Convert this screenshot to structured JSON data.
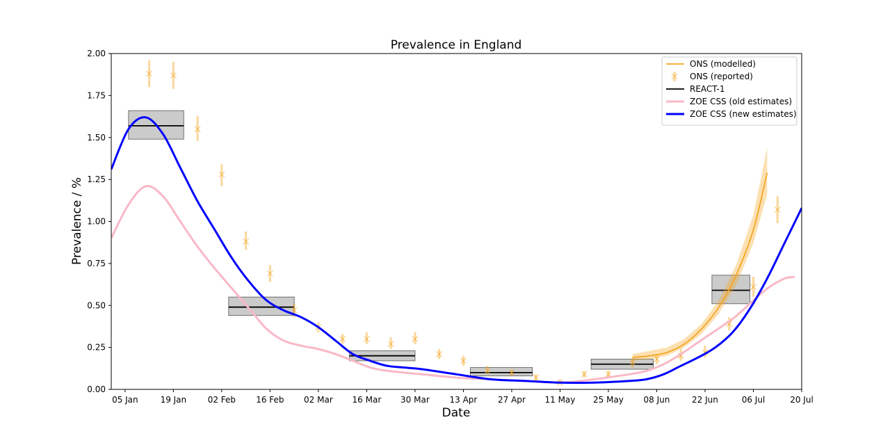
{
  "chart_data": {
    "type": "line",
    "title": "Prevalence in England",
    "xlabel": "Date",
    "ylabel": "Prevalence / %",
    "x_ticks": [
      {
        "date": "2021-01-05",
        "label": "05 Jan"
      },
      {
        "date": "2021-01-19",
        "label": "19 Jan"
      },
      {
        "date": "2021-02-02",
        "label": "02 Feb"
      },
      {
        "date": "2021-02-16",
        "label": "16 Feb"
      },
      {
        "date": "2021-03-02",
        "label": "02 Mar"
      },
      {
        "date": "2021-03-16",
        "label": "16 Mar"
      },
      {
        "date": "2021-03-30",
        "label": "30 Mar"
      },
      {
        "date": "2021-04-13",
        "label": "13 Apr"
      },
      {
        "date": "2021-04-27",
        "label": "27 Apr"
      },
      {
        "date": "2021-05-11",
        "label": "11 May"
      },
      {
        "date": "2021-05-25",
        "label": "25 May"
      },
      {
        "date": "2021-06-08",
        "label": "08 Jun"
      },
      {
        "date": "2021-06-22",
        "label": "22 Jun"
      },
      {
        "date": "2021-07-06",
        "label": "06 Jul"
      },
      {
        "date": "2021-07-20",
        "label": "20 Jul"
      }
    ],
    "y_ticks": [
      "0.00",
      "0.25",
      "0.50",
      "0.75",
      "1.00",
      "1.25",
      "1.50",
      "1.75",
      "2.00"
    ],
    "xlim": [
      "2021-01-01",
      "2021-07-20"
    ],
    "ylim": [
      0,
      2.0
    ],
    "legend_position": "top-right",
    "grid": false,
    "series": [
      {
        "name": "ONS (modelled)",
        "kind": "line_band",
        "color": "#f5a623",
        "band_color": "#f5a623",
        "points": [
          {
            "x": "2021-06-01",
            "y": 0.19,
            "lo": 0.17,
            "hi": 0.21
          },
          {
            "x": "2021-06-06",
            "y": 0.2,
            "lo": 0.18,
            "hi": 0.23
          },
          {
            "x": "2021-06-11",
            "y": 0.22,
            "lo": 0.2,
            "hi": 0.25
          },
          {
            "x": "2021-06-16",
            "y": 0.27,
            "lo": 0.25,
            "hi": 0.3
          },
          {
            "x": "2021-06-21",
            "y": 0.36,
            "lo": 0.33,
            "hi": 0.39
          },
          {
            "x": "2021-06-26",
            "y": 0.49,
            "lo": 0.45,
            "hi": 0.53
          },
          {
            "x": "2021-07-01",
            "y": 0.68,
            "lo": 0.62,
            "hi": 0.74
          },
          {
            "x": "2021-07-06",
            "y": 0.95,
            "lo": 0.87,
            "hi": 1.04
          },
          {
            "x": "2021-07-10",
            "y": 1.29,
            "lo": 1.16,
            "hi": 1.44
          }
        ]
      },
      {
        "name": "ONS (reported)",
        "kind": "errorbar",
        "color": "#f5a623",
        "points": [
          {
            "x": "2021-01-12",
            "y": 1.88,
            "lo": 1.8,
            "hi": 1.96
          },
          {
            "x": "2021-01-19",
            "y": 1.87,
            "lo": 1.79,
            "hi": 1.95
          },
          {
            "x": "2021-01-26",
            "y": 1.55,
            "lo": 1.48,
            "hi": 1.63
          },
          {
            "x": "2021-02-02",
            "y": 1.28,
            "lo": 1.21,
            "hi": 1.34
          },
          {
            "x": "2021-02-09",
            "y": 0.88,
            "lo": 0.83,
            "hi": 0.94
          },
          {
            "x": "2021-02-16",
            "y": 0.69,
            "lo": 0.64,
            "hi": 0.74
          },
          {
            "x": "2021-02-23",
            "y": 0.47,
            "lo": 0.43,
            "hi": 0.51
          },
          {
            "x": "2021-03-02",
            "y": 0.37,
            "lo": 0.34,
            "hi": 0.4
          },
          {
            "x": "2021-03-09",
            "y": 0.3,
            "lo": 0.27,
            "hi": 0.33
          },
          {
            "x": "2021-03-16",
            "y": 0.3,
            "lo": 0.27,
            "hi": 0.34
          },
          {
            "x": "2021-03-23",
            "y": 0.27,
            "lo": 0.24,
            "hi": 0.31
          },
          {
            "x": "2021-03-30",
            "y": 0.3,
            "lo": 0.27,
            "hi": 0.34
          },
          {
            "x": "2021-04-06",
            "y": 0.21,
            "lo": 0.18,
            "hi": 0.24
          },
          {
            "x": "2021-04-13",
            "y": 0.17,
            "lo": 0.14,
            "hi": 0.2
          },
          {
            "x": "2021-04-20",
            "y": 0.11,
            "lo": 0.09,
            "hi": 0.14
          },
          {
            "x": "2021-04-27",
            "y": 0.1,
            "lo": 0.08,
            "hi": 0.12
          },
          {
            "x": "2021-05-04",
            "y": 0.07,
            "lo": 0.05,
            "hi": 0.09
          },
          {
            "x": "2021-05-11",
            "y": 0.04,
            "lo": 0.03,
            "hi": 0.06
          },
          {
            "x": "2021-05-18",
            "y": 0.09,
            "lo": 0.07,
            "hi": 0.11
          },
          {
            "x": "2021-05-25",
            "y": 0.09,
            "lo": 0.07,
            "hi": 0.11
          },
          {
            "x": "2021-06-01",
            "y": 0.16,
            "lo": 0.13,
            "hi": 0.19
          },
          {
            "x": "2021-06-08",
            "y": 0.18,
            "lo": 0.15,
            "hi": 0.21
          },
          {
            "x": "2021-06-15",
            "y": 0.2,
            "lo": 0.17,
            "hi": 0.24
          },
          {
            "x": "2021-06-22",
            "y": 0.22,
            "lo": 0.19,
            "hi": 0.26
          },
          {
            "x": "2021-06-29",
            "y": 0.39,
            "lo": 0.35,
            "hi": 0.43
          },
          {
            "x": "2021-07-06",
            "y": 0.61,
            "lo": 0.55,
            "hi": 0.67
          },
          {
            "x": "2021-07-13",
            "y": 1.07,
            "lo": 0.99,
            "hi": 1.15
          }
        ]
      },
      {
        "name": "REACT-1",
        "kind": "interval_box",
        "color": "#000000",
        "box_color": "#a0a0a0",
        "rounds": [
          {
            "start": "2021-01-06",
            "end": "2021-01-22",
            "y": 1.57,
            "lo": 1.49,
            "hi": 1.66
          },
          {
            "start": "2021-02-04",
            "end": "2021-02-23",
            "y": 0.49,
            "lo": 0.44,
            "hi": 0.55
          },
          {
            "start": "2021-03-11",
            "end": "2021-03-30",
            "y": 0.2,
            "lo": 0.17,
            "hi": 0.23
          },
          {
            "start": "2021-04-15",
            "end": "2021-05-03",
            "y": 0.1,
            "lo": 0.08,
            "hi": 0.13
          },
          {
            "start": "2021-05-20",
            "end": "2021-06-07",
            "y": 0.15,
            "lo": 0.12,
            "hi": 0.18
          },
          {
            "start": "2021-06-24",
            "end": "2021-07-05",
            "y": 0.59,
            "lo": 0.51,
            "hi": 0.68
          }
        ]
      },
      {
        "name": "ZOE CSS (old estimates)",
        "kind": "line",
        "color": "#f9b8c6",
        "points": [
          {
            "x": "2021-01-01",
            "y": 0.9
          },
          {
            "x": "2021-01-06",
            "y": 1.1
          },
          {
            "x": "2021-01-11",
            "y": 1.21
          },
          {
            "x": "2021-01-16",
            "y": 1.15
          },
          {
            "x": "2021-01-21",
            "y": 1.0
          },
          {
            "x": "2021-01-26",
            "y": 0.85
          },
          {
            "x": "2021-01-31",
            "y": 0.72
          },
          {
            "x": "2021-02-05",
            "y": 0.6
          },
          {
            "x": "2021-02-10",
            "y": 0.48
          },
          {
            "x": "2021-02-15",
            "y": 0.36
          },
          {
            "x": "2021-02-20",
            "y": 0.29
          },
          {
            "x": "2021-02-25",
            "y": 0.26
          },
          {
            "x": "2021-03-02",
            "y": 0.24
          },
          {
            "x": "2021-03-07",
            "y": 0.21
          },
          {
            "x": "2021-03-12",
            "y": 0.17
          },
          {
            "x": "2021-03-17",
            "y": 0.13
          },
          {
            "x": "2021-03-22",
            "y": 0.11
          },
          {
            "x": "2021-03-27",
            "y": 0.1
          },
          {
            "x": "2021-04-01",
            "y": 0.09
          },
          {
            "x": "2021-04-11",
            "y": 0.07
          },
          {
            "x": "2021-04-21",
            "y": 0.06
          },
          {
            "x": "2021-05-01",
            "y": 0.05
          },
          {
            "x": "2021-05-11",
            "y": 0.04
          },
          {
            "x": "2021-05-21",
            "y": 0.06
          },
          {
            "x": "2021-05-31",
            "y": 0.09
          },
          {
            "x": "2021-06-05",
            "y": 0.11
          },
          {
            "x": "2021-06-10",
            "y": 0.15
          },
          {
            "x": "2021-06-15",
            "y": 0.21
          },
          {
            "x": "2021-06-20",
            "y": 0.28
          },
          {
            "x": "2021-06-25",
            "y": 0.35
          },
          {
            "x": "2021-06-30",
            "y": 0.42
          },
          {
            "x": "2021-07-05",
            "y": 0.51
          },
          {
            "x": "2021-07-10",
            "y": 0.6
          },
          {
            "x": "2021-07-15",
            "y": 0.66
          },
          {
            "x": "2021-07-18",
            "y": 0.67
          }
        ]
      },
      {
        "name": "ZOE CSS (new estimates)",
        "kind": "line",
        "color": "#0000ff",
        "points": [
          {
            "x": "2021-01-01",
            "y": 1.31
          },
          {
            "x": "2021-01-06",
            "y": 1.55
          },
          {
            "x": "2021-01-11",
            "y": 1.62
          },
          {
            "x": "2021-01-16",
            "y": 1.52
          },
          {
            "x": "2021-01-21",
            "y": 1.32
          },
          {
            "x": "2021-01-26",
            "y": 1.12
          },
          {
            "x": "2021-01-31",
            "y": 0.95
          },
          {
            "x": "2021-02-05",
            "y": 0.78
          },
          {
            "x": "2021-02-10",
            "y": 0.64
          },
          {
            "x": "2021-02-15",
            "y": 0.53
          },
          {
            "x": "2021-02-20",
            "y": 0.47
          },
          {
            "x": "2021-02-25",
            "y": 0.43
          },
          {
            "x": "2021-03-02",
            "y": 0.37
          },
          {
            "x": "2021-03-07",
            "y": 0.29
          },
          {
            "x": "2021-03-12",
            "y": 0.21
          },
          {
            "x": "2021-03-17",
            "y": 0.17
          },
          {
            "x": "2021-03-22",
            "y": 0.14
          },
          {
            "x": "2021-03-27",
            "y": 0.13
          },
          {
            "x": "2021-04-01",
            "y": 0.12
          },
          {
            "x": "2021-04-11",
            "y": 0.09
          },
          {
            "x": "2021-04-21",
            "y": 0.06
          },
          {
            "x": "2021-05-01",
            "y": 0.05
          },
          {
            "x": "2021-05-11",
            "y": 0.04
          },
          {
            "x": "2021-05-21",
            "y": 0.04
          },
          {
            "x": "2021-05-31",
            "y": 0.05
          },
          {
            "x": "2021-06-05",
            "y": 0.06
          },
          {
            "x": "2021-06-10",
            "y": 0.09
          },
          {
            "x": "2021-06-15",
            "y": 0.14
          },
          {
            "x": "2021-06-20",
            "y": 0.19
          },
          {
            "x": "2021-06-25",
            "y": 0.25
          },
          {
            "x": "2021-06-30",
            "y": 0.34
          },
          {
            "x": "2021-07-05",
            "y": 0.48
          },
          {
            "x": "2021-07-10",
            "y": 0.66
          },
          {
            "x": "2021-07-15",
            "y": 0.87
          },
          {
            "x": "2021-07-20",
            "y": 1.08
          }
        ]
      }
    ]
  }
}
